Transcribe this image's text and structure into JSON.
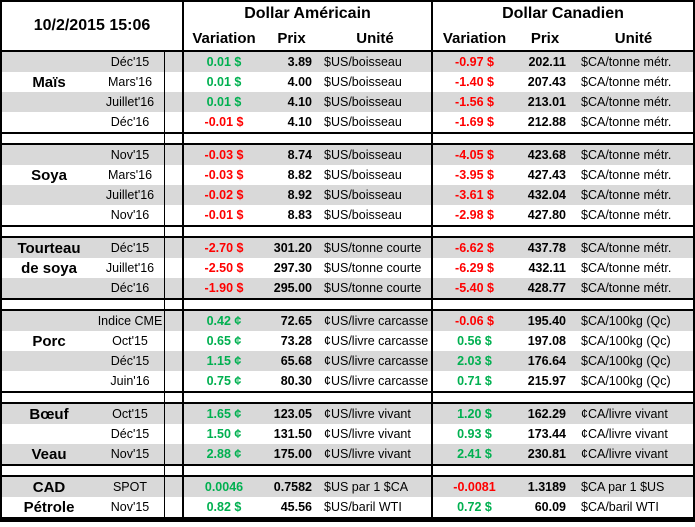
{
  "header": {
    "timestamp": "10/2/2015 15:06",
    "usd_group": "Dollar Américain",
    "cad_group": "Dollar Canadien",
    "columns": {
      "variation": "Variation",
      "prix": "Prix",
      "unite": "Unité"
    }
  },
  "colors": {
    "positive": "#00B050",
    "negative": "#FF0000",
    "stripe": "#D9D9D9"
  },
  "groups": [
    {
      "name": "Maïs",
      "rows": [
        {
          "label": "",
          "month": "Déc'15",
          "us_var": "0.01 $",
          "us_prix": "3.89",
          "us_unit": "$US/boisseau",
          "ca_var": "-0.97 $",
          "ca_prix": "202.11",
          "ca_unit": "$CA/tonne métr."
        },
        {
          "label": "Maïs",
          "month": "Mars'16",
          "us_var": "0.01 $",
          "us_prix": "4.00",
          "us_unit": "$US/boisseau",
          "ca_var": "-1.40 $",
          "ca_prix": "207.43",
          "ca_unit": "$CA/tonne métr."
        },
        {
          "label": "",
          "month": "Juillet'16",
          "us_var": "0.01 $",
          "us_prix": "4.10",
          "us_unit": "$US/boisseau",
          "ca_var": "-1.56 $",
          "ca_prix": "213.01",
          "ca_unit": "$CA/tonne métr."
        },
        {
          "label": "",
          "month": "Déc'16",
          "us_var": "-0.01 $",
          "us_prix": "4.10",
          "us_unit": "$US/boisseau",
          "ca_var": "-1.69 $",
          "ca_prix": "212.88",
          "ca_unit": "$CA/tonne métr."
        }
      ]
    },
    {
      "name": "Soya",
      "rows": [
        {
          "label": "",
          "month": "Nov'15",
          "us_var": "-0.03 $",
          "us_prix": "8.74",
          "us_unit": "$US/boisseau",
          "ca_var": "-4.05 $",
          "ca_prix": "423.68",
          "ca_unit": "$CA/tonne métr."
        },
        {
          "label": "Soya",
          "month": "Mars'16",
          "us_var": "-0.03 $",
          "us_prix": "8.82",
          "us_unit": "$US/boisseau",
          "ca_var": "-3.95 $",
          "ca_prix": "427.43",
          "ca_unit": "$CA/tonne métr."
        },
        {
          "label": "",
          "month": "Juillet'16",
          "us_var": "-0.02 $",
          "us_prix": "8.92",
          "us_unit": "$US/boisseau",
          "ca_var": "-3.61 $",
          "ca_prix": "432.04",
          "ca_unit": "$CA/tonne métr."
        },
        {
          "label": "",
          "month": "Nov'16",
          "us_var": "-0.01 $",
          "us_prix": "8.83",
          "us_unit": "$US/boisseau",
          "ca_var": "-2.98 $",
          "ca_prix": "427.80",
          "ca_unit": "$CA/tonne métr."
        }
      ]
    },
    {
      "name": "Tourteau de soya",
      "rows": [
        {
          "label": "Tourteau",
          "month": "Déc'15",
          "us_var": "-2.70 $",
          "us_prix": "301.20",
          "us_unit": "$US/tonne courte",
          "ca_var": "-6.62 $",
          "ca_prix": "437.78",
          "ca_unit": "$CA/tonne métr."
        },
        {
          "label": "de soya",
          "month": "Juillet'16",
          "us_var": "-2.50 $",
          "us_prix": "297.30",
          "us_unit": "$US/tonne courte",
          "ca_var": "-6.29 $",
          "ca_prix": "432.11",
          "ca_unit": "$CA/tonne métr."
        },
        {
          "label": "",
          "month": "Déc'16",
          "us_var": "-1.90 $",
          "us_prix": "295.00",
          "us_unit": "$US/tonne courte",
          "ca_var": "-5.40 $",
          "ca_prix": "428.77",
          "ca_unit": "$CA/tonne métr."
        }
      ]
    },
    {
      "name": "Porc",
      "rows": [
        {
          "label": "",
          "month": "Indice CME",
          "us_var": "0.42 ¢",
          "us_prix": "72.65",
          "us_unit": "¢US/livre carcasse",
          "ca_var": "-0.06 $",
          "ca_prix": "195.40",
          "ca_unit": "$CA/100kg (Qc)"
        },
        {
          "label": "Porc",
          "month": "Oct'15",
          "us_var": "0.65 ¢",
          "us_prix": "73.28",
          "us_unit": "¢US/livre carcasse",
          "ca_var": "0.56 $",
          "ca_prix": "197.08",
          "ca_unit": "$CA/100kg (Qc)"
        },
        {
          "label": "",
          "month": "Déc'15",
          "us_var": "1.15 ¢",
          "us_prix": "65.68",
          "us_unit": "¢US/livre carcasse",
          "ca_var": "2.03 $",
          "ca_prix": "176.64",
          "ca_unit": "$CA/100kg (Qc)"
        },
        {
          "label": "",
          "month": "Juin'16",
          "us_var": "0.75 ¢",
          "us_prix": "80.30",
          "us_unit": "¢US/livre carcasse",
          "ca_var": "0.71 $",
          "ca_prix": "215.97",
          "ca_unit": "$CA/100kg (Qc)"
        }
      ]
    },
    {
      "name": "Bœuf / Veau",
      "rows": [
        {
          "label": "Bœuf",
          "month": "Oct'15",
          "us_var": "1.65 ¢",
          "us_prix": "123.05",
          "us_unit": "¢US/livre vivant",
          "ca_var": "1.20 $",
          "ca_prix": "162.29",
          "ca_unit": "¢CA/livre vivant"
        },
        {
          "label": "",
          "month": "Déc'15",
          "us_var": "1.50 ¢",
          "us_prix": "131.50",
          "us_unit": "¢US/livre vivant",
          "ca_var": "0.93 $",
          "ca_prix": "173.44",
          "ca_unit": "¢CA/livre vivant"
        },
        {
          "label": "Veau",
          "month": "Nov'15",
          "us_var": "2.88 ¢",
          "us_prix": "175.00",
          "us_unit": "¢US/livre vivant",
          "ca_var": "2.41 $",
          "ca_prix": "230.81",
          "ca_unit": "¢CA/livre vivant"
        }
      ]
    },
    {
      "name": "CAD / Pétrole",
      "rows": [
        {
          "label": "CAD",
          "month": "SPOT",
          "us_var": "0.0046",
          "us_prix": "0.7582",
          "us_unit": "$US par 1 $CA",
          "ca_var": "-0.0081",
          "ca_prix": "1.3189",
          "ca_unit": "$CA par 1 $US"
        },
        {
          "label": "Pétrole",
          "month": "Nov'15",
          "us_var": "0.82 $",
          "us_prix": "45.56",
          "us_unit": "$US/baril WTI",
          "ca_var": "0.72 $",
          "ca_prix": "60.09",
          "ca_unit": "$CA/baril WTI"
        }
      ]
    }
  ]
}
